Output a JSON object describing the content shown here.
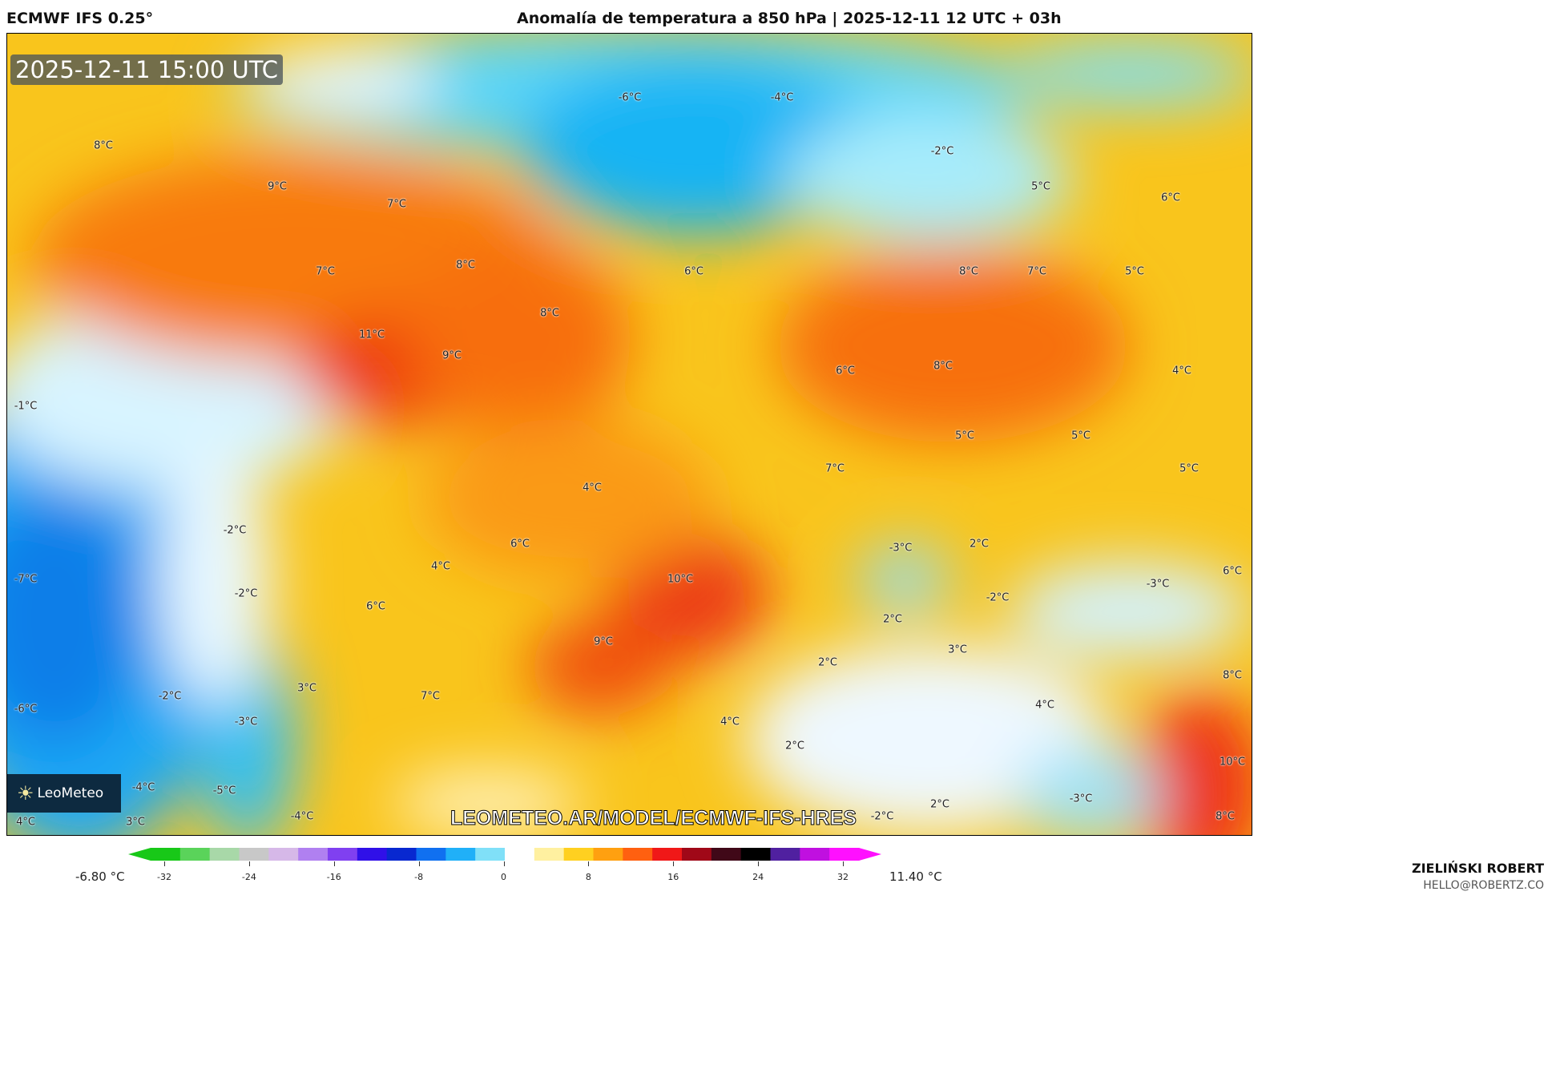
{
  "header": {
    "model": "ECMWF IFS 0.25°",
    "title": "Anomalía de temperatura a 850 hPa | 2025-12-11 12 UTC + 03h"
  },
  "map": {
    "valid_time": "2025-12-11 15:00 UTC",
    "watermark": "LEOMETEO.AR/MODEL/ECMWF-IFS-HRES",
    "logo": "LeoMeteo",
    "labels": [
      "-6°C",
      "-4°C",
      "8°C",
      "-2°C",
      "9°C",
      "7°C",
      "5°C",
      "6°C",
      "8°C",
      "7°C",
      "6°C",
      "8°C",
      "7°C",
      "5°C",
      "8°C",
      "11°C",
      "9°C",
      "6°C",
      "8°C",
      "4°C",
      "-1°C",
      "5°C",
      "5°C",
      "7°C",
      "5°C",
      "4°C",
      "-2°C",
      "-3°C",
      "2°C",
      "6°C",
      "4°C",
      "-7°C",
      "10°C",
      "-3°C",
      "6°C",
      "-2°C",
      "-2°C",
      "6°C",
      "2°C",
      "9°C",
      "3°C",
      "2°C",
      "8°C",
      "3°C",
      "-2°C",
      "7°C",
      "4°C",
      "-6°C",
      "-3°C",
      "4°C",
      "2°C",
      "10°C",
      "-4°C",
      "-5°C",
      "-3°C",
      "2°C",
      "4°C",
      "3°C",
      "-4°C",
      "-2°C",
      "8°C"
    ]
  },
  "colorbar": {
    "min_label": "-6.80 °C",
    "max_label": "11.40 °C",
    "ticks": [
      "-32",
      "-24",
      "-16",
      "-8",
      "0",
      "8",
      "16",
      "24",
      "32"
    ],
    "colors": [
      "#18c818",
      "#5ad35a",
      "#a8d8a8",
      "#c8c8c8",
      "#d6b8e8",
      "#b080f0",
      "#8040f0",
      "#3010e8",
      "#0828d0",
      "#1070f0",
      "#20b0f8",
      "#80e0f8",
      "#ffffff",
      "#fff0a0",
      "#ffd020",
      "#ffa010",
      "#ff6010",
      "#f01818",
      "#a00818",
      "#400818",
      "#000000",
      "#5020a0",
      "#c010e0",
      "#ff10ff"
    ]
  },
  "footer": {
    "author": "ZIELIŃSKI ROBERT",
    "email": "HELLO@ROBERTZ.CO"
  }
}
